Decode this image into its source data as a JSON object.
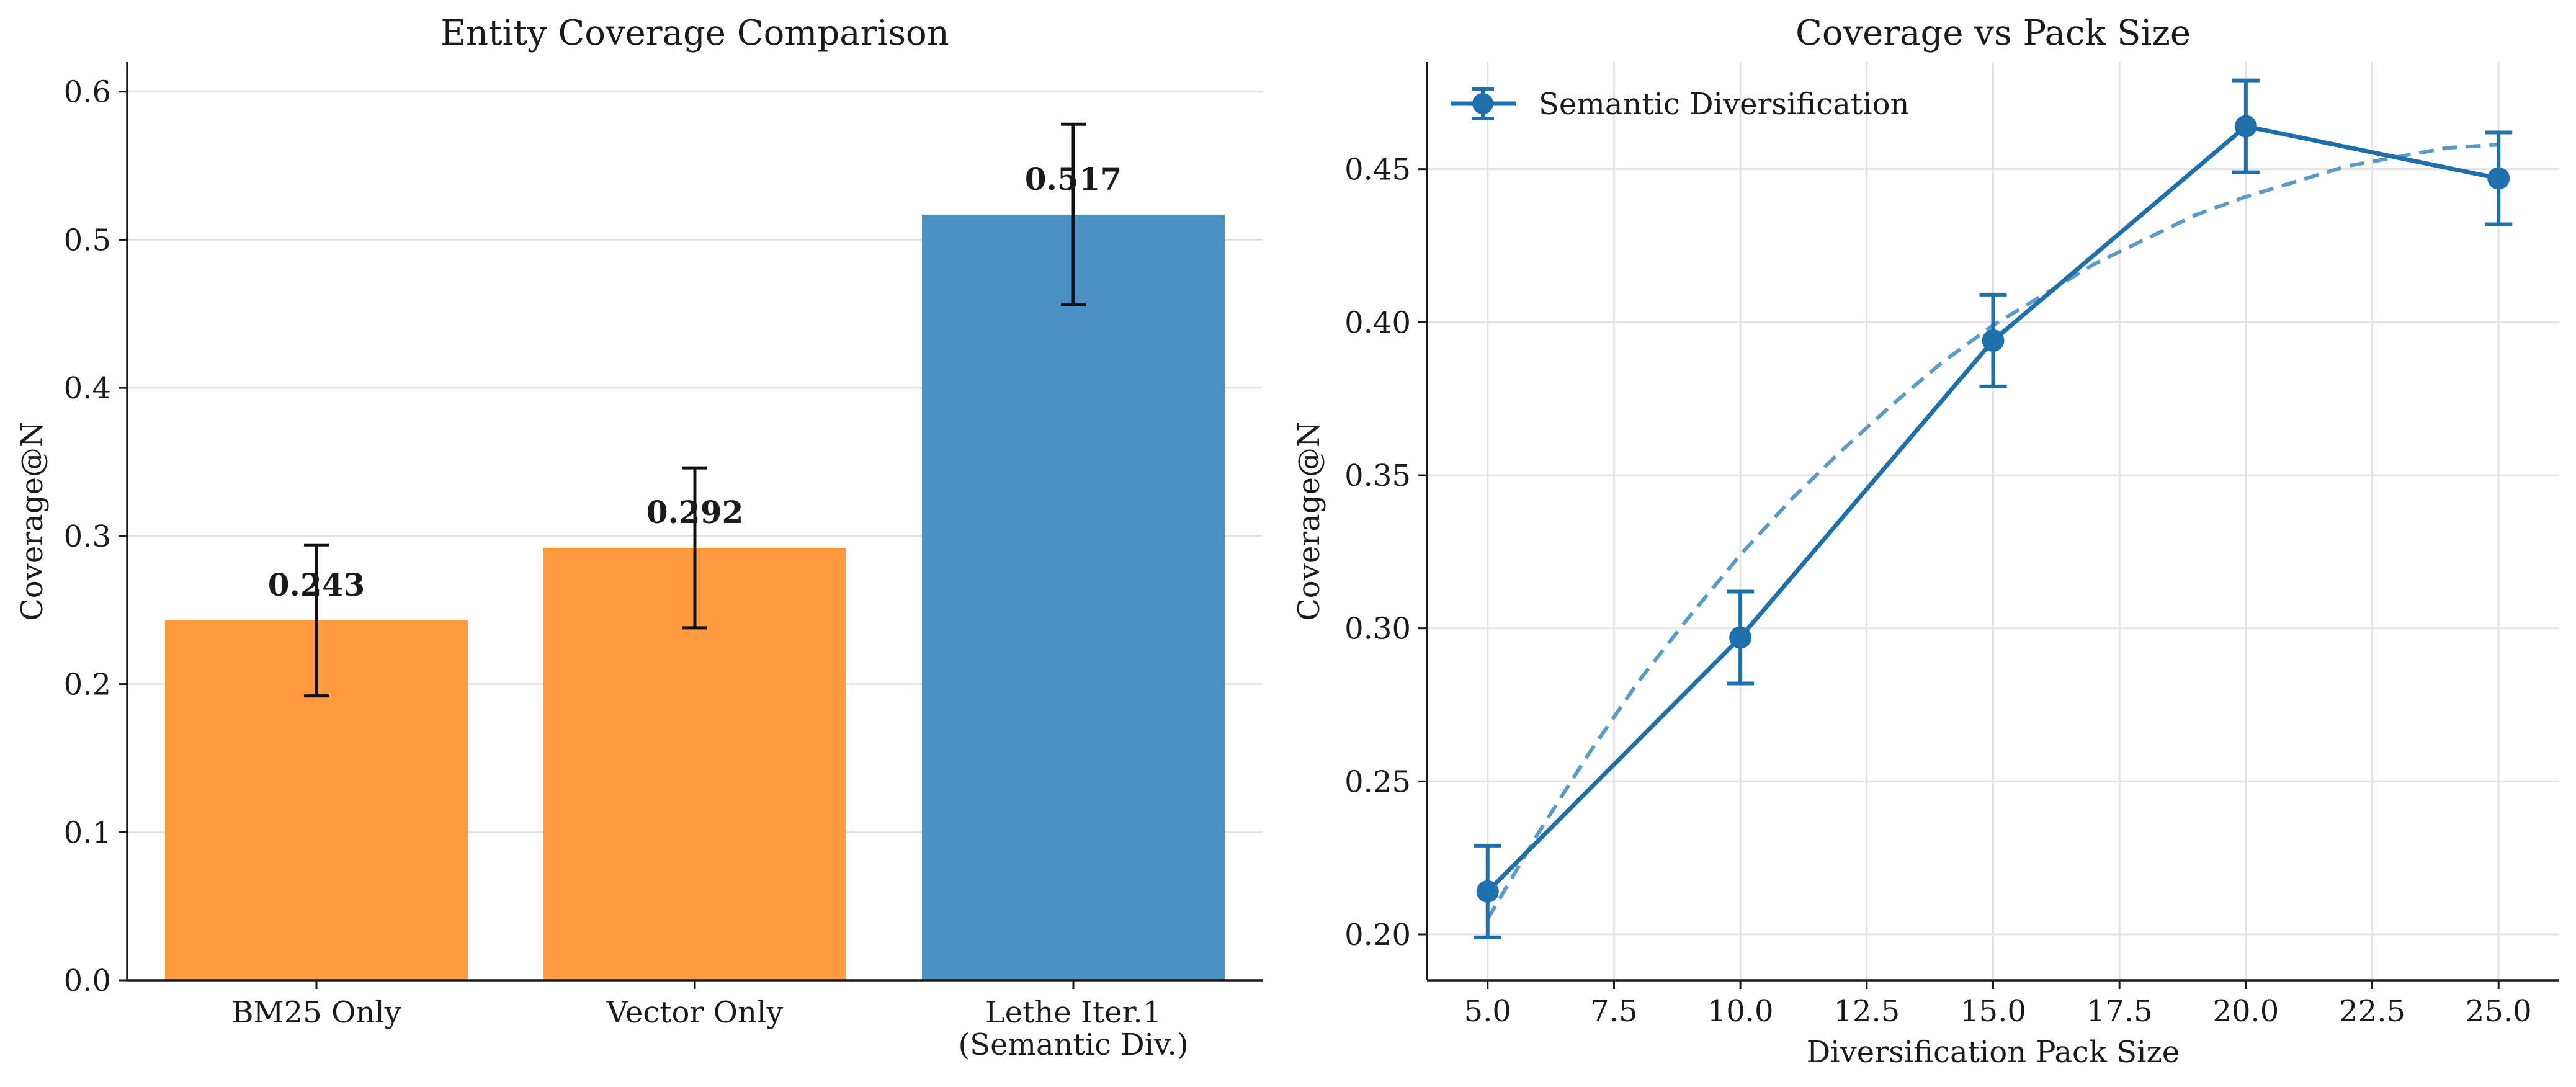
{
  "chart_data": [
    {
      "type": "bar",
      "title": "Entity Coverage Comparison",
      "xlabel": "",
      "ylabel": "Coverage@N",
      "ylim": [
        0,
        0.62
      ],
      "yticks": [
        0.0,
        0.1,
        0.2,
        0.3,
        0.4,
        0.5,
        0.6
      ],
      "ytick_labels": [
        "0.0",
        "0.1",
        "0.2",
        "0.3",
        "0.4",
        "0.5",
        "0.6"
      ],
      "grid": "horizontal",
      "categories": [
        [
          "BM25 Only"
        ],
        [
          "Vector Only"
        ],
        [
          "Lethe Iter.1",
          "(Semantic Div.)"
        ]
      ],
      "values": [
        0.243,
        0.292,
        0.517
      ],
      "value_labels": [
        "0.243",
        "0.292",
        "0.517"
      ],
      "errors": [
        0.051,
        0.054,
        0.061
      ],
      "colors": [
        "#ff9a40",
        "#ff9a40",
        "#4a90c2"
      ]
    },
    {
      "type": "line",
      "title": "Coverage vs Pack Size",
      "xlabel": "Diversification Pack Size",
      "ylabel": "Coverage@N",
      "xlim": [
        3.8,
        26.2
      ],
      "ylim": [
        0.185,
        0.485
      ],
      "xticks": [
        5.0,
        7.5,
        10.0,
        12.5,
        15.0,
        17.5,
        20.0,
        22.5,
        25.0
      ],
      "xtick_labels": [
        "5.0",
        "7.5",
        "10.0",
        "12.5",
        "15.0",
        "17.5",
        "20.0",
        "22.5",
        "25.0"
      ],
      "yticks": [
        0.2,
        0.25,
        0.3,
        0.35,
        0.4,
        0.45
      ],
      "ytick_labels": [
        "0.20",
        "0.25",
        "0.30",
        "0.35",
        "0.40",
        "0.45"
      ],
      "grid": "both",
      "legend_position": "top-left",
      "series": [
        {
          "name": "Semantic Diversification",
          "x": [
            5,
            10,
            15,
            20,
            25
          ],
          "y": [
            0.214,
            0.297,
            0.394,
            0.464,
            0.447
          ],
          "errors": [
            0.015,
            0.015,
            0.015,
            0.015,
            0.015
          ],
          "color": "#1f6fad"
        }
      ],
      "fit": {
        "style": "dashed",
        "color": "#5a9ac8",
        "x": [
          5,
          6,
          7,
          8,
          9,
          10,
          11,
          12,
          13,
          14,
          15,
          16,
          17,
          18,
          19,
          20,
          21,
          22,
          23,
          24,
          25
        ],
        "y": [
          0.205,
          0.233,
          0.259,
          0.283,
          0.304,
          0.324,
          0.342,
          0.358,
          0.373,
          0.387,
          0.399,
          0.409,
          0.419,
          0.427,
          0.435,
          0.441,
          0.446,
          0.451,
          0.454,
          0.457,
          0.458
        ]
      }
    }
  ]
}
